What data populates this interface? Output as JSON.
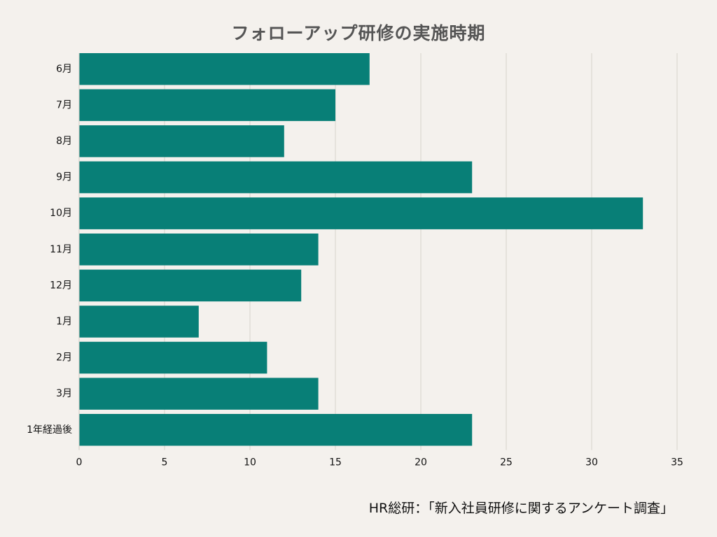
{
  "chart_data": {
    "type": "bar",
    "orientation": "horizontal",
    "title": "フォローアップ研修の実施時期",
    "categories": [
      "6月",
      "7月",
      "8月",
      "9月",
      "10月",
      "11月",
      "12月",
      "1月",
      "2月",
      "3月",
      "1年経過後"
    ],
    "values": [
      17,
      15,
      12,
      23,
      33,
      14,
      13,
      7,
      11,
      14,
      23
    ],
    "xlim": [
      0,
      35
    ],
    "xticks": [
      0,
      5,
      10,
      15,
      20,
      25,
      30,
      35
    ],
    "grid": "vertical",
    "legend": "none",
    "bar_color": "#087f77",
    "grid_color": "#d6d2cc"
  },
  "source": "HR総研：「新入社員研修に関するアンケート調査」"
}
